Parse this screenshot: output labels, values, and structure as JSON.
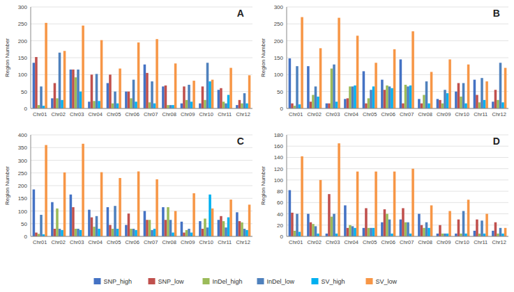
{
  "chart_data": [
    {
      "type": "bar",
      "title": "A",
      "ylabel": "Region Number",
      "categories": [
        "Chr01",
        "Chr02",
        "Chr03",
        "Chr04",
        "Chr05",
        "Chr06",
        "Chr07",
        "Chr08",
        "Chr09",
        "Chr10",
        "Chr11",
        "Chr12"
      ],
      "series": [
        {
          "name": "SNP_high",
          "color": "#4472C4",
          "values": [
            135,
            30,
            115,
            20,
            75,
            50,
            130,
            65,
            15,
            15,
            55,
            10
          ]
        },
        {
          "name": "SNP_low",
          "color": "#C0504D",
          "values": [
            152,
            75,
            115,
            100,
            100,
            50,
            105,
            68,
            65,
            65,
            60,
            25
          ]
        },
        {
          "name": "InDel_high",
          "color": "#9BBB59",
          "values": [
            10,
            30,
            92,
            22,
            15,
            30,
            18,
            10,
            25,
            25,
            20,
            15
          ]
        },
        {
          "name": "InDel_low",
          "color": "#4F81BD",
          "values": [
            65,
            165,
            115,
            102,
            50,
            85,
            80,
            10,
            70,
            135,
            15,
            45
          ]
        },
        {
          "name": "SV_high",
          "color": "#00B0F0",
          "values": [
            8,
            25,
            50,
            22,
            15,
            20,
            15,
            10,
            20,
            80,
            40,
            15
          ]
        },
        {
          "name": "SV_low",
          "color": "#F79646",
          "values": [
            253,
            170,
            245,
            202,
            118,
            195,
            205,
            133,
            82,
            85,
            120,
            98
          ]
        }
      ],
      "ylim": [
        0,
        300
      ],
      "yticks": [
        0,
        50,
        100,
        150,
        200,
        250,
        300
      ],
      "grid": true,
      "legend": "bottom"
    },
    {
      "type": "bar",
      "title": "B",
      "ylabel": "Region Number",
      "categories": [
        "Chr01",
        "Chr02",
        "Chr03",
        "Chr04",
        "Chr05",
        "Chr06",
        "Chr07",
        "Chr08",
        "Chr09",
        "Chr10",
        "Chr11",
        "Chr12"
      ],
      "series": [
        {
          "name": "SNP_high",
          "color": "#4472C4",
          "values": [
            148,
            125,
            15,
            28,
            110,
            85,
            145,
            28,
            28,
            50,
            85,
            20
          ]
        },
        {
          "name": "SNP_low",
          "color": "#C0504D",
          "values": [
            15,
            20,
            15,
            30,
            15,
            55,
            15,
            15,
            25,
            75,
            40,
            55
          ]
        },
        {
          "name": "InDel_high",
          "color": "#9BBB59",
          "values": [
            8,
            40,
            118,
            65,
            30,
            68,
            70,
            40,
            15,
            35,
            18,
            25
          ]
        },
        {
          "name": "InDel_low",
          "color": "#4F81BD",
          "values": [
            125,
            65,
            130,
            65,
            55,
            65,
            65,
            80,
            55,
            75,
            90,
            135
          ]
        },
        {
          "name": "SV_high",
          "color": "#00B0F0",
          "values": [
            12,
            35,
            20,
            68,
            65,
            60,
            68,
            15,
            45,
            15,
            25,
            18
          ]
        },
        {
          "name": "SV_low",
          "color": "#F79646",
          "values": [
            270,
            178,
            268,
            215,
            135,
            175,
            228,
            108,
            145,
            130,
            80,
            120
          ]
        }
      ],
      "ylim": [
        0,
        300
      ],
      "yticks": [
        0,
        50,
        100,
        150,
        200,
        250,
        300
      ],
      "grid": true
    },
    {
      "type": "bar",
      "title": "C",
      "ylabel": "Region Number",
      "categories": [
        "Chr01",
        "Chr02",
        "Chr03",
        "Chr04",
        "Chr05",
        "Chr06",
        "Chr07",
        "Chr08",
        "Chr09",
        "Chr10",
        "Chr11",
        "Chr12"
      ],
      "series": [
        {
          "name": "SNP_high",
          "color": "#4472C4",
          "values": [
            185,
            135,
            165,
            105,
            115,
            45,
            100,
            115,
            58,
            60,
            65,
            95
          ]
        },
        {
          "name": "SNP_low",
          "color": "#C0504D",
          "values": [
            15,
            30,
            115,
            75,
            45,
            90,
            65,
            65,
            15,
            30,
            80,
            60
          ]
        },
        {
          "name": "InDel_high",
          "color": "#9BBB59",
          "values": [
            10,
            110,
            30,
            38,
            30,
            30,
            65,
            115,
            25,
            70,
            60,
            55
          ]
        },
        {
          "name": "InDel_low",
          "color": "#4F81BD",
          "values": [
            85,
            30,
            30,
            80,
            120,
            30,
            25,
            65,
            30,
            35,
            35,
            30
          ]
        },
        {
          "name": "SV_high",
          "color": "#00B0F0",
          "values": [
            8,
            25,
            25,
            30,
            30,
            25,
            30,
            15,
            15,
            165,
            75,
            25
          ]
        },
        {
          "name": "SV_low",
          "color": "#F79646",
          "values": [
            360,
            252,
            365,
            253,
            230,
            256,
            225,
            100,
            170,
            110,
            145,
            125
          ]
        }
      ],
      "ylim": [
        0,
        400
      ],
      "yticks": [
        0,
        50,
        100,
        150,
        200,
        250,
        300,
        350,
        400
      ],
      "grid": true
    },
    {
      "type": "bar",
      "title": "D",
      "ylabel": "Region Number",
      "categories": [
        "Chr01",
        "Chr02",
        "Chr03",
        "Chr04",
        "Chr05",
        "Chr06",
        "Chr07",
        "Chr08",
        "Chr09",
        "Chr10",
        "Chr11",
        "Chr12"
      ],
      "series": [
        {
          "name": "SNP_high",
          "color": "#4472C4",
          "values": [
            82,
            40,
            5,
            55,
            15,
            25,
            30,
            40,
            5,
            5,
            10,
            10
          ]
        },
        {
          "name": "SNP_low",
          "color": "#C0504D",
          "values": [
            42,
            25,
            75,
            15,
            50,
            48,
            50,
            20,
            20,
            30,
            30,
            25
          ]
        },
        {
          "name": "InDel_high",
          "color": "#9BBB59",
          "values": [
            10,
            22,
            35,
            20,
            15,
            40,
            25,
            15,
            5,
            5,
            5,
            5
          ]
        },
        {
          "name": "InDel_low",
          "color": "#4F81BD",
          "values": [
            40,
            18,
            40,
            18,
            15,
            30,
            25,
            25,
            5,
            45,
            28,
            15
          ]
        },
        {
          "name": "SV_high",
          "color": "#00B0F0",
          "values": [
            8,
            5,
            5,
            15,
            15,
            5,
            5,
            15,
            5,
            5,
            5,
            5
          ]
        },
        {
          "name": "SV_low",
          "color": "#F79646",
          "values": [
            142,
            100,
            165,
            115,
            115,
            115,
            120,
            55,
            45,
            65,
            40,
            15
          ]
        }
      ],
      "ylim": [
        0,
        180
      ],
      "yticks": [
        0,
        20,
        40,
        60,
        80,
        100,
        120,
        140,
        160,
        180
      ],
      "grid": true
    }
  ]
}
